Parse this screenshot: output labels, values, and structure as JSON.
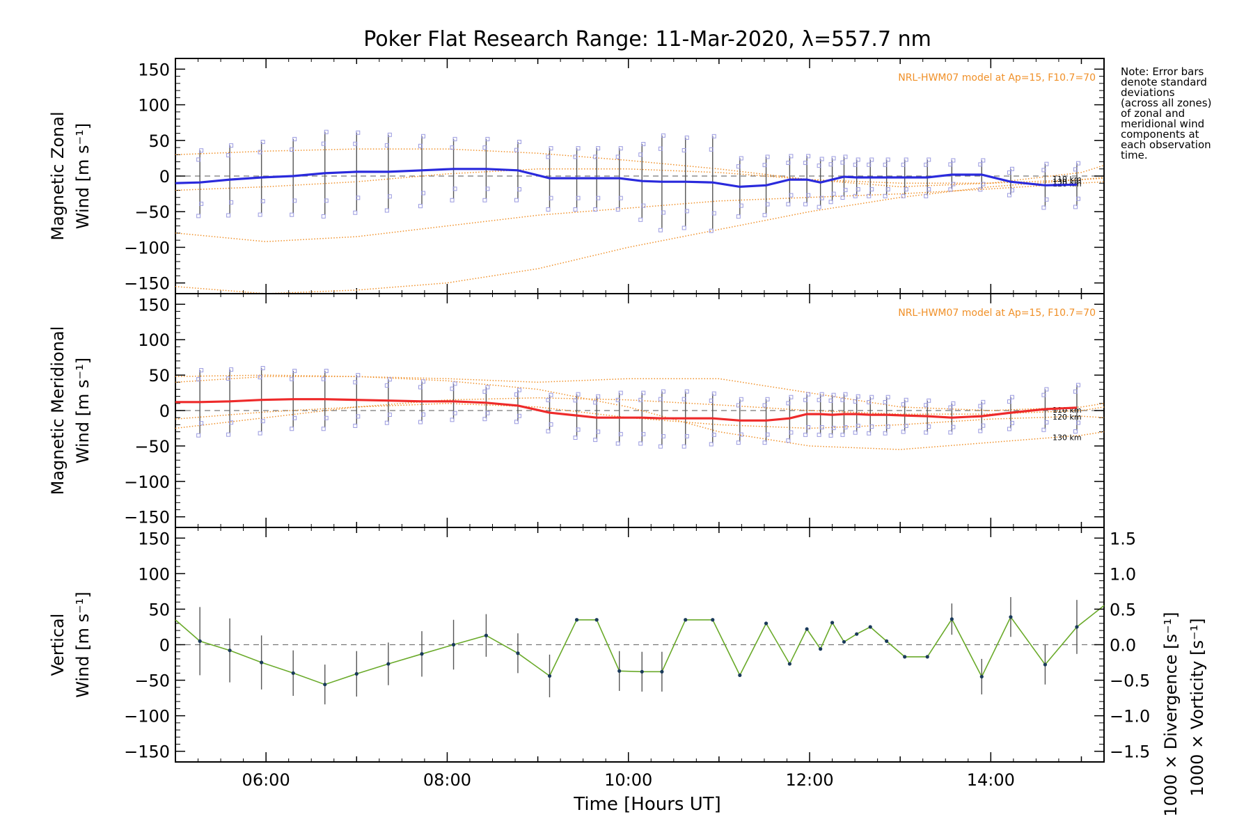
{
  "colors": {
    "zonal": "#2a2adc",
    "meridional": "#ee2a2a",
    "vertical": "#6aaa2a",
    "model": "#f09028",
    "errorbar": "#555555",
    "divergence": "#4aa6d8",
    "vorticity": "#ee4a80",
    "zone_marker": "#9a9ae0"
  },
  "chart_data": {
    "title": "Poker Flat Research Range: 11-Mar-2020, λ=557.7 nm",
    "xlabel": "Time [Hours UT]",
    "xlim": [
      5.0,
      15.25
    ],
    "x_ticks": [
      6,
      8,
      10,
      12,
      14
    ],
    "x_tick_labels": [
      "06:00",
      "08:00",
      "10:00",
      "12:00",
      "14:00"
    ],
    "note": [
      "Note: Error bars",
      "denote standard",
      "deviations",
      "(across all zones)",
      "of zonal and",
      "meridional wind",
      "components at",
      "each observation",
      "time."
    ],
    "panels": [
      {
        "id": "zonal",
        "type": "line",
        "ylabel_top": "Magnetic Zonal",
        "ylabel_bottom": "Wind [m s⁻¹]",
        "ylim": [
          -165,
          165
        ],
        "y_ticks": [
          -150,
          -100,
          -50,
          0,
          50,
          100,
          150
        ],
        "y_tick_labels": [
          "−150",
          "−100",
          "−50",
          "0",
          "50",
          "100",
          "150"
        ],
        "model_note": "NRL-HWM07 model at Ap=15, F10.7=70",
        "model_labels": [
          "110 km",
          "120 km",
          "130 km"
        ],
        "series": [
          {
            "kind": "mean",
            "x": [
              5.0,
              5.27,
              5.6,
              5.95,
              6.3,
              6.65,
              7.0,
              7.35,
              7.72,
              8.07,
              8.43,
              8.78,
              9.13,
              9.43,
              9.65,
              9.9,
              10.15,
              10.37,
              10.63,
              10.93,
              11.23,
              11.52,
              11.78,
              11.97,
              12.12,
              12.25,
              12.38,
              12.52,
              12.67,
              12.85,
              13.05,
              13.3,
              13.57,
              13.9,
              14.22,
              14.6,
              14.95
            ],
            "y": [
              -10,
              -9,
              -5,
              -2,
              0,
              4,
              6,
              6,
              8,
              10,
              10,
              8,
              -3,
              -3,
              -3,
              -3,
              -7,
              -8,
              -8,
              -9,
              -15,
              -13,
              -5,
              -5,
              -9,
              -5,
              -1,
              -2,
              -2,
              -2,
              -2,
              -2,
              2,
              2,
              -8,
              -13,
              -12
            ],
            "err": [
              0,
              45,
              48,
              50,
              52,
              58,
              55,
              52,
              48,
              42,
              42,
              40,
              42,
              42,
              42,
              42,
              52,
              65,
              62,
              65,
              40,
              40,
              33,
              33,
              33,
              30,
              28,
              25,
              25,
              25,
              25,
              25,
              20,
              20,
              18,
              30,
              30
            ]
          }
        ],
        "model_curves": [
          {
            "label": "110 km",
            "x": [
              5.0,
              6.0,
              7.0,
              8.0,
              9.0,
              10.0,
              11.0,
              12.0,
              13.0,
              14.0,
              15.0,
              15.25
            ],
            "y": [
              -20,
              -15,
              -8,
              3,
              10,
              10,
              5,
              -5,
              -10,
              -10,
              -5,
              -3
            ]
          },
          {
            "label": "120 km",
            "x": [
              5.0,
              6.0,
              7.0,
              8.0,
              9.0,
              10.0,
              11.0,
              12.0,
              13.0,
              14.0,
              15.0,
              15.25
            ],
            "y": [
              -80,
              -92,
              -85,
              -70,
              -55,
              -45,
              -35,
              -30,
              -25,
              -18,
              -10,
              -8
            ]
          },
          {
            "label": "130 km",
            "x": [
              5.0,
              6.0,
              7.0,
              8.0,
              9.0,
              10.0,
              11.0,
              12.0,
              13.0,
              14.0,
              15.0,
              15.25
            ],
            "y": [
              -155,
              -165,
              -160,
              -150,
              -130,
              -100,
              -75,
              -50,
              -30,
              -15,
              -5,
              -2
            ]
          },
          {
            "label": "upper",
            "x": [
              5.0,
              6.0,
              7.0,
              8.0,
              9.0,
              10.0,
              11.0,
              12.0,
              13.0,
              14.0,
              15.0,
              15.25
            ],
            "y": [
              30,
              35,
              38,
              38,
              32,
              22,
              10,
              -5,
              -15,
              -10,
              5,
              15
            ]
          }
        ]
      },
      {
        "id": "meridional",
        "type": "line",
        "ylabel_top": "Magnetic Meridional",
        "ylabel_bottom": "Wind [m s⁻¹]",
        "ylim": [
          -165,
          165
        ],
        "y_ticks": [
          -150,
          -100,
          -50,
          0,
          50,
          100,
          150
        ],
        "y_tick_labels": [
          "−150",
          "−100",
          "−50",
          "0",
          "50",
          "100",
          "150"
        ],
        "model_note": "NRL-HWM07 model at Ap=15, F10.7=70",
        "model_labels": [
          "110 km",
          "120 km",
          "130 km"
        ],
        "series": [
          {
            "kind": "mean",
            "x": [
              5.0,
              5.27,
              5.6,
              5.95,
              6.3,
              6.65,
              7.0,
              7.35,
              7.72,
              8.07,
              8.43,
              8.78,
              9.13,
              9.43,
              9.65,
              9.9,
              10.15,
              10.37,
              10.63,
              10.93,
              11.23,
              11.52,
              11.78,
              11.97,
              12.12,
              12.25,
              12.38,
              12.52,
              12.67,
              12.85,
              13.05,
              13.3,
              13.57,
              13.9,
              14.22,
              14.6,
              14.95
            ],
            "y": [
              12,
              12,
              13,
              15,
              16,
              16,
              15,
              14,
              13,
              13,
              11,
              7,
              -3,
              -7,
              -10,
              -10,
              -10,
              -11,
              -11,
              -11,
              -14,
              -14,
              -11,
              -5,
              -5,
              -6,
              -5,
              -5,
              -6,
              -6,
              -7,
              -8,
              -10,
              -8,
              -3,
              2,
              4
            ],
            "err": [
              0,
              45,
              45,
              45,
              40,
              40,
              35,
              30,
              28,
              25,
              22,
              22,
              25,
              30,
              30,
              35,
              35,
              38,
              38,
              35,
              30,
              30,
              30,
              28,
              28,
              28,
              28,
              25,
              25,
              25,
              22,
              22,
              20,
              20,
              22,
              28,
              32
            ]
          }
        ],
        "model_curves": [
          {
            "label": "110 km",
            "x": [
              5.0,
              6.0,
              7.0,
              8.0,
              9.0,
              10.0,
              11.0,
              12.0,
              13.0,
              14.0,
              15.0,
              15.25
            ],
            "y": [
              -25,
              -10,
              5,
              15,
              18,
              15,
              8,
              0,
              -5,
              -5,
              0,
              5
            ]
          },
          {
            "label": "120 km",
            "x": [
              5.0,
              6.0,
              7.0,
              8.0,
              9.0,
              10.0,
              11.0,
              12.0,
              13.0,
              14.0,
              15.0,
              15.25
            ],
            "y": [
              -12,
              -2,
              5,
              10,
              5,
              -10,
              -20,
              -25,
              -20,
              -12,
              -8,
              -10
            ]
          },
          {
            "label": "130 km",
            "x": [
              5.0,
              6.0,
              7.0,
              8.0,
              9.0,
              10.0,
              11.0,
              12.0,
              13.0,
              14.0,
              15.0,
              15.25
            ],
            "y": [
              48,
              50,
              48,
              42,
              30,
              5,
              -30,
              -50,
              -55,
              -45,
              -35,
              -30
            ]
          },
          {
            "label": "upper",
            "x": [
              5.0,
              6.0,
              7.0,
              8.0,
              9.0,
              10.0,
              11.0,
              12.0,
              13.0,
              14.0,
              15.0,
              15.25
            ],
            "y": [
              40,
              48,
              48,
              45,
              40,
              45,
              45,
              25,
              5,
              0,
              5,
              10
            ]
          }
        ]
      },
      {
        "id": "vertical",
        "type": "line",
        "ylabel_top": "Vertical",
        "ylabel_bottom": "Wind [m s⁻¹]",
        "ylim": [
          -165,
          165
        ],
        "y_ticks": [
          -150,
          -100,
          -50,
          0,
          50,
          100,
          150
        ],
        "y_tick_labels": [
          "−150",
          "−100",
          "−50",
          "0",
          "50",
          "100",
          "150"
        ],
        "right_axis": {
          "ylim": [
            -1.65,
            1.65
          ],
          "y_ticks": [
            -1.5,
            -1.0,
            -0.5,
            0.0,
            0.5,
            1.0,
            1.5
          ],
          "y_tick_labels": [
            "−1.5",
            "−1.0",
            "−0.5",
            "0.0",
            "0.5",
            "1.0",
            "1.5"
          ],
          "label_divergence": "1000 × Divergence [s⁻¹]",
          "label_vorticity": "1000 × Vorticity [s⁻¹]"
        },
        "series": [
          {
            "kind": "vertical",
            "x": [
              5.0,
              5.27,
              5.6,
              5.95,
              6.3,
              6.65,
              7.0,
              7.35,
              7.72,
              8.07,
              8.43,
              8.78,
              9.13,
              9.43,
              9.65,
              9.9,
              10.15,
              10.37,
              10.63,
              10.93,
              11.23,
              11.52,
              11.78,
              11.97,
              12.12,
              12.25,
              12.38,
              12.52,
              12.67,
              12.85,
              13.05,
              13.3,
              13.57,
              13.9,
              14.22,
              14.6,
              14.95,
              15.25
            ],
            "y": [
              35,
              5,
              -8,
              -25,
              -40,
              -56,
              -41,
              -27,
              -13,
              0,
              13,
              -12,
              -44,
              35,
              35,
              -37,
              -38,
              -38,
              35,
              35,
              -43,
              30,
              -27,
              22,
              -6,
              31,
              4,
              15,
              25,
              5,
              -17,
              -17,
              36,
              -45,
              39,
              -28,
              25,
              55
            ],
            "err": [
              0,
              48,
              45,
              38,
              32,
              28,
              32,
              30,
              32,
              35,
              30,
              28,
              30,
              0,
              0,
              28,
              28,
              28,
              0,
              0,
              0,
              0,
              0,
              0,
              0,
              0,
              0,
              0,
              0,
              0,
              0,
              0,
              22,
              25,
              28,
              28,
              38,
              0
            ]
          }
        ]
      }
    ]
  }
}
